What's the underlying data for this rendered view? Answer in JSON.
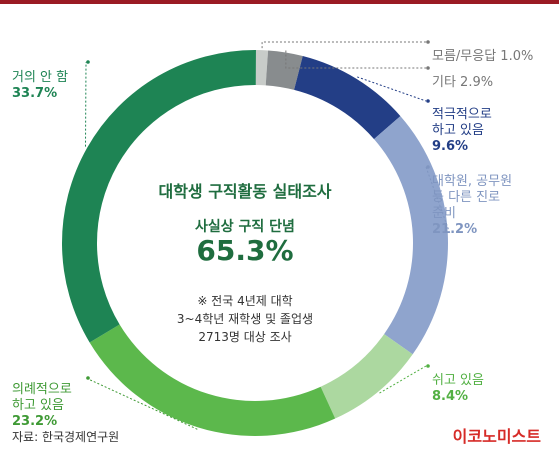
{
  "chart_data": {
    "type": "pie",
    "title": "대학생 구직활동 실태조사",
    "center": {
      "subtitle": "사실상 구직 단념",
      "value": "65.3%",
      "note": [
        "※ 전국 4년제 대학",
        "3~4학년 재학생 및 졸업생",
        "2713명 대상 조사"
      ]
    },
    "slices": [
      {
        "label": "모름/무응답",
        "value": 1.0,
        "color": "#c8ccc9",
        "label_color": "#777777"
      },
      {
        "label": "기타",
        "value": 2.9,
        "color": "#888c8e",
        "label_color": "#777777"
      },
      {
        "label": "적극적으로 하고 있음",
        "value": 9.6,
        "color": "#233e86",
        "label_color": "#233e86"
      },
      {
        "label": "대학원, 공무원 등 다른 진로 준비",
        "value": 21.2,
        "color": "#8fa4cd",
        "label_color": "#7f95c0"
      },
      {
        "label": "쉬고 있음",
        "value": 8.4,
        "color": "#acd8a0",
        "label_color": "#52b043"
      },
      {
        "label": "의례적으로 하고 있음",
        "value": 23.2,
        "color": "#5cb84c",
        "label_color": "#3f9a35"
      },
      {
        "label": "거의 안 함",
        "value": 33.7,
        "color": "#1e8454",
        "label_color": "#1e8454"
      }
    ]
  },
  "labels": [
    {
      "line1": "모름/무응답 1.0%",
      "pct": ""
    },
    {
      "line1": "기타 2.9%",
      "pct": ""
    },
    {
      "line1": "적극적으로\n하고 있음",
      "pct": "9.6%"
    },
    {
      "line1": "대학원, 공무원\n등 다른 진로\n준비",
      "pct": "21.2%"
    },
    {
      "line1": "쉬고 있음",
      "pct": "8.4%"
    },
    {
      "line1": "의례적으로\n하고 있음",
      "pct": "23.2%"
    },
    {
      "line1": "거의 안 함",
      "pct": "33.7%"
    }
  ],
  "source": "자료: 한국경제연구원",
  "brand": "이코노미스트"
}
